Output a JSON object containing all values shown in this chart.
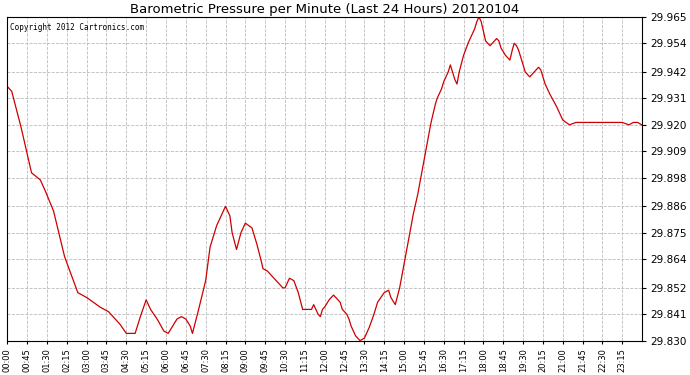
{
  "title": "Barometric Pressure per Minute (Last 24 Hours) 20120104",
  "copyright": "Copyright 2012 Cartronics.com",
  "line_color": "#cc0000",
  "bg_color": "#ffffff",
  "grid_color": "#bbbbbb",
  "ylim": [
    29.83,
    29.965
  ],
  "yticks": [
    29.83,
    29.841,
    29.852,
    29.864,
    29.875,
    29.886,
    29.898,
    29.909,
    29.92,
    29.931,
    29.942,
    29.954,
    29.965
  ],
  "xtick_labels": [
    "00:00",
    "00:45",
    "01:30",
    "02:15",
    "03:00",
    "03:45",
    "04:30",
    "05:15",
    "06:00",
    "06:45",
    "07:30",
    "08:15",
    "09:00",
    "09:45",
    "10:30",
    "11:15",
    "12:00",
    "12:45",
    "13:30",
    "14:15",
    "15:00",
    "15:45",
    "16:30",
    "17:15",
    "18:00",
    "18:45",
    "19:30",
    "20:15",
    "21:00",
    "21:45",
    "22:30",
    "23:15"
  ],
  "control_points": [
    [
      0,
      29.936
    ],
    [
      10,
      29.934
    ],
    [
      30,
      29.92
    ],
    [
      55,
      29.9
    ],
    [
      75,
      29.897
    ],
    [
      85,
      29.893
    ],
    [
      105,
      29.884
    ],
    [
      130,
      29.865
    ],
    [
      160,
      29.85
    ],
    [
      180,
      29.848
    ],
    [
      210,
      29.844
    ],
    [
      230,
      29.842
    ],
    [
      240,
      29.84
    ],
    [
      255,
      29.837
    ],
    [
      270,
      29.833
    ],
    [
      290,
      29.833
    ],
    [
      300,
      29.839
    ],
    [
      315,
      29.847
    ],
    [
      325,
      29.843
    ],
    [
      340,
      29.839
    ],
    [
      355,
      29.834
    ],
    [
      365,
      29.833
    ],
    [
      375,
      29.836
    ],
    [
      385,
      29.839
    ],
    [
      395,
      29.84
    ],
    [
      405,
      29.839
    ],
    [
      415,
      29.836
    ],
    [
      420,
      29.833
    ],
    [
      430,
      29.84
    ],
    [
      450,
      29.855
    ],
    [
      460,
      29.869
    ],
    [
      475,
      29.878
    ],
    [
      490,
      29.884
    ],
    [
      495,
      29.886
    ],
    [
      505,
      29.882
    ],
    [
      510,
      29.875
    ],
    [
      520,
      29.868
    ],
    [
      530,
      29.875
    ],
    [
      540,
      29.879
    ],
    [
      555,
      29.877
    ],
    [
      565,
      29.871
    ],
    [
      575,
      29.864
    ],
    [
      580,
      29.86
    ],
    [
      590,
      29.859
    ],
    [
      600,
      29.857
    ],
    [
      615,
      29.854
    ],
    [
      625,
      29.852
    ],
    [
      630,
      29.852
    ],
    [
      640,
      29.856
    ],
    [
      650,
      29.855
    ],
    [
      660,
      29.85
    ],
    [
      670,
      29.843
    ],
    [
      680,
      29.843
    ],
    [
      690,
      29.843
    ],
    [
      695,
      29.845
    ],
    [
      700,
      29.843
    ],
    [
      705,
      29.841
    ],
    [
      710,
      29.84
    ],
    [
      715,
      29.843
    ],
    [
      720,
      29.844
    ],
    [
      730,
      29.847
    ],
    [
      740,
      29.849
    ],
    [
      755,
      29.846
    ],
    [
      760,
      29.843
    ],
    [
      770,
      29.841
    ],
    [
      775,
      29.839
    ],
    [
      780,
      29.836
    ],
    [
      785,
      29.834
    ],
    [
      790,
      29.832
    ],
    [
      795,
      29.831
    ],
    [
      800,
      29.83
    ],
    [
      810,
      29.831
    ],
    [
      820,
      29.835
    ],
    [
      830,
      29.84
    ],
    [
      840,
      29.846
    ],
    [
      855,
      29.85
    ],
    [
      865,
      29.851
    ],
    [
      870,
      29.848
    ],
    [
      880,
      29.845
    ],
    [
      890,
      29.852
    ],
    [
      900,
      29.862
    ],
    [
      910,
      29.872
    ],
    [
      920,
      29.882
    ],
    [
      930,
      29.89
    ],
    [
      940,
      29.9
    ],
    [
      950,
      29.91
    ],
    [
      960,
      29.92
    ],
    [
      970,
      29.928
    ],
    [
      975,
      29.931
    ],
    [
      985,
      29.935
    ],
    [
      990,
      29.938
    ],
    [
      1000,
      29.942
    ],
    [
      1005,
      29.945
    ],
    [
      1010,
      29.942
    ],
    [
      1015,
      29.939
    ],
    [
      1020,
      29.937
    ],
    [
      1025,
      29.942
    ],
    [
      1035,
      29.949
    ],
    [
      1045,
      29.954
    ],
    [
      1055,
      29.958
    ],
    [
      1060,
      29.96
    ],
    [
      1065,
      29.963
    ],
    [
      1070,
      29.965
    ],
    [
      1075,
      29.963
    ],
    [
      1080,
      29.959
    ],
    [
      1085,
      29.955
    ],
    [
      1095,
      29.953
    ],
    [
      1100,
      29.954
    ],
    [
      1110,
      29.956
    ],
    [
      1115,
      29.955
    ],
    [
      1120,
      29.952
    ],
    [
      1130,
      29.949
    ],
    [
      1140,
      29.947
    ],
    [
      1145,
      29.951
    ],
    [
      1150,
      29.954
    ],
    [
      1155,
      29.953
    ],
    [
      1160,
      29.951
    ],
    [
      1165,
      29.948
    ],
    [
      1170,
      29.945
    ],
    [
      1175,
      29.942
    ],
    [
      1185,
      29.94
    ],
    [
      1195,
      29.942
    ],
    [
      1205,
      29.944
    ],
    [
      1210,
      29.943
    ],
    [
      1215,
      29.94
    ],
    [
      1220,
      29.937
    ],
    [
      1230,
      29.933
    ],
    [
      1245,
      29.928
    ],
    [
      1260,
      29.922
    ],
    [
      1275,
      29.92
    ],
    [
      1290,
      29.921
    ],
    [
      1305,
      29.921
    ],
    [
      1320,
      29.921
    ],
    [
      1335,
      29.921
    ],
    [
      1350,
      29.921
    ],
    [
      1365,
      29.921
    ],
    [
      1380,
      29.921
    ],
    [
      1395,
      29.921
    ],
    [
      1410,
      29.92
    ],
    [
      1420,
      29.921
    ],
    [
      1430,
      29.921
    ],
    [
      1439,
      29.92
    ]
  ]
}
